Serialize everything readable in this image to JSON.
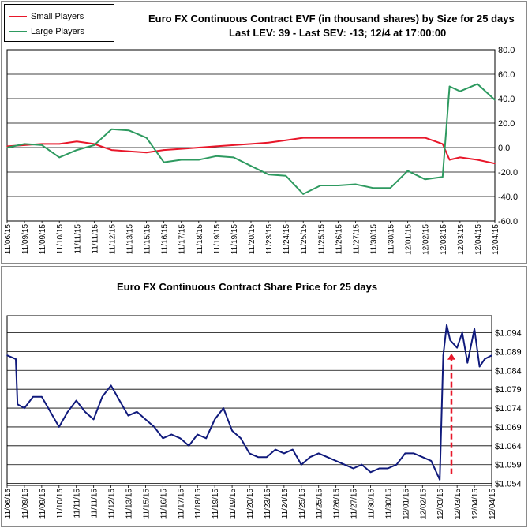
{
  "chart_data": [
    {
      "type": "line",
      "title": "Euro FX Continuous Contract EVF (in thousand shares) by Size for 25 days",
      "subtitle": "Last LEV: 39 - Last SEV: -13; 12/4 at 17:00:00",
      "ylim": [
        -60,
        80
      ],
      "yticks": [
        "80.0",
        "60.0",
        "40.0",
        "20.0",
        "0.0",
        "-20.0",
        "-40.0",
        "-60.0"
      ],
      "ytick_values": [
        80,
        60,
        40,
        20,
        0,
        -20,
        -40,
        -60
      ],
      "y_axis_side": "right",
      "grid": "horizontal",
      "legend_position": "top-left",
      "x_categories": [
        "11/06/15",
        "11/09/15",
        "11/09/15",
        "11/10/15",
        "11/11/15",
        "11/11/15",
        "11/12/15",
        "11/13/15",
        "11/15/15",
        "11/16/15",
        "11/17/15",
        "11/18/15",
        "11/19/15",
        "11/19/15",
        "11/20/15",
        "11/23/15",
        "11/24/15",
        "11/25/15",
        "11/25/15",
        "11/26/15",
        "11/27/15",
        "11/30/15",
        "11/30/15",
        "12/01/15",
        "12/02/15",
        "12/03/15",
        "12/03/15",
        "12/04/15",
        "12/04/15"
      ],
      "series": [
        {
          "name": "Small Players",
          "color": "#e8172a",
          "x": [
            0,
            1,
            2,
            3,
            4,
            5,
            6,
            7,
            8,
            9,
            10,
            11,
            12,
            13,
            14,
            15,
            16,
            17,
            18,
            19,
            20,
            21,
            22,
            23,
            24,
            25,
            25.4,
            26,
            27,
            28
          ],
          "values": [
            1,
            2,
            3,
            3,
            5,
            3,
            -2,
            -3,
            -4,
            -2,
            -1,
            0,
            1,
            2,
            3,
            4,
            6,
            8,
            8,
            8,
            8,
            8,
            8,
            8,
            8,
            3,
            -10,
            -8,
            -10,
            -13
          ]
        },
        {
          "name": "Large Players",
          "color": "#2e9a60",
          "x": [
            0,
            1,
            2,
            3,
            4,
            5,
            6,
            7,
            8,
            9,
            10,
            11,
            12,
            13,
            14,
            15,
            16,
            17,
            18,
            19,
            20,
            21,
            22,
            23,
            24,
            25,
            25.4,
            26,
            27,
            28
          ],
          "values": [
            0,
            3,
            2,
            -8,
            -2,
            2,
            15,
            14,
            8,
            -12,
            -10,
            -10,
            -7,
            -8,
            -15,
            -22,
            -23,
            -38,
            -31,
            -31,
            -30,
            -33,
            -33,
            -19,
            -26,
            -24,
            50,
            46,
            52,
            39
          ]
        }
      ]
    },
    {
      "type": "line",
      "title": "Euro FX Continuous Contract Share Price for 25 days",
      "ylim": [
        1.0535,
        1.0985
      ],
      "yticks": [
        "$1.094",
        "$1.089",
        "$1.084",
        "$1.079",
        "$1.074",
        "$1.069",
        "$1.064",
        "$1.059",
        "$1.054"
      ],
      "ytick_values": [
        1.094,
        1.089,
        1.084,
        1.079,
        1.074,
        1.069,
        1.064,
        1.059,
        1.054
      ],
      "y_axis_side": "right",
      "grid": "horizontal",
      "x_categories": [
        "11/06/15",
        "11/09/15",
        "11/09/15",
        "11/10/15",
        "11/11/15",
        "11/11/15",
        "11/12/15",
        "11/13/15",
        "11/15/15",
        "11/16/15",
        "11/17/15",
        "11/18/15",
        "11/19/15",
        "11/19/15",
        "11/20/15",
        "11/23/15",
        "11/24/15",
        "11/25/15",
        "11/25/15",
        "11/26/15",
        "11/27/15",
        "11/30/15",
        "11/30/15",
        "12/01/15",
        "12/02/15",
        "12/03/15",
        "12/03/15",
        "12/04/15",
        "12/04/15"
      ],
      "series": [
        {
          "color": "#101a7c",
          "x": [
            0,
            0.5,
            0.6,
            1,
            1.5,
            2,
            2.5,
            3,
            3.5,
            4,
            4.5,
            5,
            5.5,
            6,
            6.5,
            7,
            7.5,
            8,
            8.5,
            9,
            9.5,
            10,
            10.5,
            11,
            11.5,
            12,
            12.5,
            13,
            13.5,
            14,
            14.5,
            15,
            15.5,
            16,
            16.5,
            17,
            17.5,
            18,
            18.5,
            19,
            19.5,
            20,
            20.5,
            21,
            21.5,
            22,
            22.5,
            23,
            23.5,
            24,
            24.5,
            25,
            25.2,
            25.4,
            25.6,
            26,
            26.3,
            26.6,
            27,
            27.3,
            27.6,
            28
          ],
          "values": [
            1.088,
            1.087,
            1.075,
            1.074,
            1.077,
            1.077,
            1.073,
            1.069,
            1.073,
            1.076,
            1.073,
            1.071,
            1.077,
            1.08,
            1.076,
            1.072,
            1.073,
            1.071,
            1.069,
            1.066,
            1.067,
            1.066,
            1.064,
            1.067,
            1.066,
            1.071,
            1.074,
            1.068,
            1.066,
            1.062,
            1.061,
            1.061,
            1.063,
            1.062,
            1.063,
            1.059,
            1.061,
            1.062,
            1.061,
            1.06,
            1.059,
            1.058,
            1.059,
            1.057,
            1.058,
            1.058,
            1.059,
            1.062,
            1.062,
            1.061,
            1.06,
            1.055,
            1.088,
            1.096,
            1.092,
            1.09,
            1.094,
            1.086,
            1.095,
            1.085,
            1.087,
            1.088
          ]
        }
      ],
      "annotation": "dashed red upward arrow near 12/03/15"
    }
  ]
}
